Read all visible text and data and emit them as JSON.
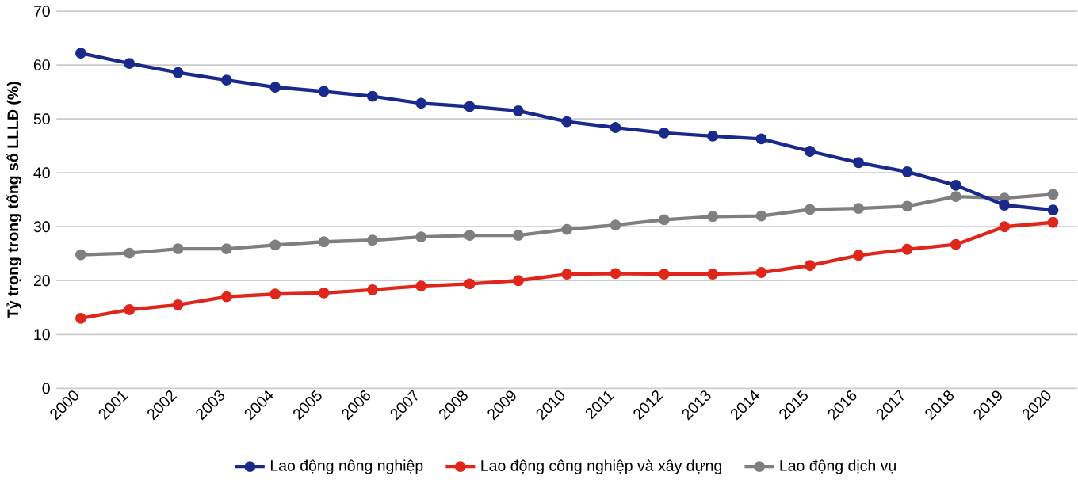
{
  "chart_data": {
    "type": "line",
    "ylabel": "Tỷ trọng trong tổng số LLLĐ (%)",
    "categories": [
      "2000",
      "2001",
      "2002",
      "2003",
      "2004",
      "2005",
      "2006",
      "2007",
      "2008",
      "2009",
      "2010",
      "2011",
      "2012",
      "2013",
      "2014",
      "2015",
      "2016",
      "2017",
      "2018",
      "2019",
      "2020"
    ],
    "series": [
      {
        "name": "Lao động nông nghiệp",
        "color": "#1a2a8c",
        "values": [
          62.2,
          60.3,
          58.6,
          57.2,
          55.9,
          55.1,
          54.2,
          52.9,
          52.3,
          51.5,
          49.5,
          48.4,
          47.4,
          46.8,
          46.3,
          44.0,
          41.9,
          40.2,
          37.7,
          34.0,
          33.1
        ]
      },
      {
        "name": "Lao động công nghiệp và xây dựng",
        "color": "#e0261b",
        "values": [
          13.0,
          14.6,
          15.5,
          17.0,
          17.5,
          17.7,
          18.3,
          19.0,
          19.4,
          20.0,
          21.2,
          21.3,
          21.2,
          21.2,
          21.5,
          22.8,
          24.7,
          25.8,
          26.7,
          30.0,
          30.8
        ]
      },
      {
        "name": "Lao động dịch vụ",
        "color": "#7f7f7f",
        "values": [
          24.8,
          25.1,
          25.9,
          25.9,
          26.6,
          27.2,
          27.5,
          28.1,
          28.4,
          28.4,
          29.5,
          30.3,
          31.3,
          31.9,
          32.0,
          33.2,
          33.4,
          33.8,
          35.6,
          35.3,
          36.0
        ]
      }
    ],
    "ylim": [
      0,
      70
    ],
    "yticks": [
      0,
      10,
      20,
      30,
      40,
      50,
      60,
      70
    ],
    "grid": "y",
    "legend": "bottom",
    "marker": "circle",
    "line_style": "solid"
  }
}
